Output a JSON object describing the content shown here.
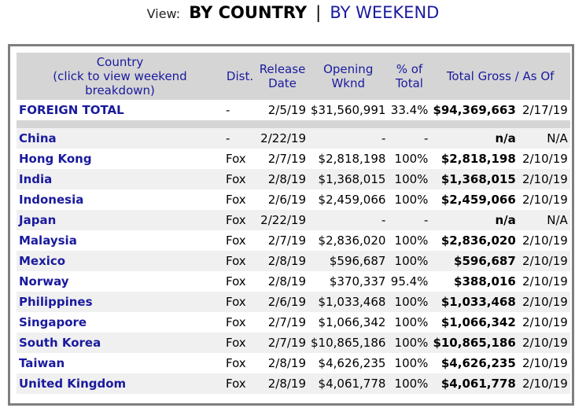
{
  "view": {
    "label": "View:",
    "current": "BY COUNTRY",
    "separator": "|",
    "alternate": "BY WEEKEND"
  },
  "table": {
    "headers": {
      "country_line1": "Country",
      "country_line2": "(click to view weekend breakdown)",
      "dist": "Dist.",
      "release_line1": "Release",
      "release_line2": "Date",
      "opening_line1": "Opening",
      "opening_line2": "Wknd",
      "pct_line1": "% of",
      "pct_line2": "Total",
      "gross": "Total Gross / As Of"
    },
    "foreign_total": {
      "label": "FOREIGN TOTAL",
      "dist": "-",
      "release": "2/5/19",
      "opening": "$31,560,991",
      "pct": "33.4%",
      "gross": "$94,369,663",
      "asof": "2/17/19"
    },
    "rows": [
      {
        "country": "China",
        "dist": "-",
        "release": "2/22/19",
        "opening": "-",
        "pct": "-",
        "gross": "n/a",
        "asof": "N/A"
      },
      {
        "country": "Hong Kong",
        "dist": "Fox",
        "release": "2/7/19",
        "opening": "$2,818,198",
        "pct": "100%",
        "gross": "$2,818,198",
        "asof": "2/10/19"
      },
      {
        "country": "India",
        "dist": "Fox",
        "release": "2/8/19",
        "opening": "$1,368,015",
        "pct": "100%",
        "gross": "$1,368,015",
        "asof": "2/10/19"
      },
      {
        "country": "Indonesia",
        "dist": "Fox",
        "release": "2/6/19",
        "opening": "$2,459,066",
        "pct": "100%",
        "gross": "$2,459,066",
        "asof": "2/10/19"
      },
      {
        "country": "Japan",
        "dist": "Fox",
        "release": "2/22/19",
        "opening": "-",
        "pct": "-",
        "gross": "n/a",
        "asof": "N/A"
      },
      {
        "country": "Malaysia",
        "dist": "Fox",
        "release": "2/7/19",
        "opening": "$2,836,020",
        "pct": "100%",
        "gross": "$2,836,020",
        "asof": "2/10/19"
      },
      {
        "country": "Mexico",
        "dist": "Fox",
        "release": "2/8/19",
        "opening": "$596,687",
        "pct": "100%",
        "gross": "$596,687",
        "asof": "2/10/19"
      },
      {
        "country": "Norway",
        "dist": "Fox",
        "release": "2/8/19",
        "opening": "$370,337",
        "pct": "95.4%",
        "gross": "$388,016",
        "asof": "2/10/19"
      },
      {
        "country": "Philippines",
        "dist": "Fox",
        "release": "2/6/19",
        "opening": "$1,033,468",
        "pct": "100%",
        "gross": "$1,033,468",
        "asof": "2/10/19"
      },
      {
        "country": "Singapore",
        "dist": "Fox",
        "release": "2/7/19",
        "opening": "$1,066,342",
        "pct": "100%",
        "gross": "$1,066,342",
        "asof": "2/10/19"
      },
      {
        "country": "South Korea",
        "dist": "Fox",
        "release": "2/7/19",
        "opening": "$10,865,186",
        "pct": "100%",
        "gross": "$10,865,186",
        "asof": "2/10/19"
      },
      {
        "country": "Taiwan",
        "dist": "Fox",
        "release": "2/8/19",
        "opening": "$4,626,235",
        "pct": "100%",
        "gross": "$4,626,235",
        "asof": "2/10/19"
      },
      {
        "country": "United Kingdom",
        "dist": "Fox",
        "release": "2/8/19",
        "opening": "$4,061,778",
        "pct": "100%",
        "gross": "$4,061,778",
        "asof": "2/10/19"
      }
    ]
  }
}
